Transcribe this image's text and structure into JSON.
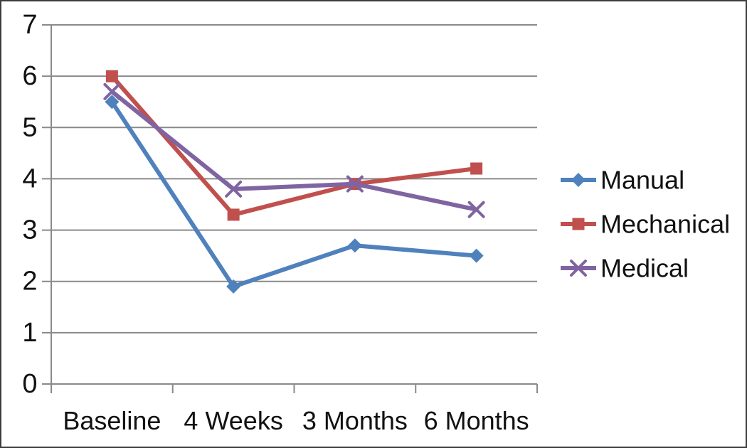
{
  "chart_data": {
    "type": "line",
    "categories": [
      "Baseline",
      "4 Weeks",
      "3 Months",
      "6 Months"
    ],
    "series": [
      {
        "name": "Manual",
        "values": [
          5.5,
          1.9,
          2.7,
          2.5
        ],
        "color": "#4F81BD",
        "marker": "diamond"
      },
      {
        "name": "Mechanical",
        "values": [
          6.0,
          3.3,
          3.9,
          4.2
        ],
        "color": "#C0504D",
        "marker": "square"
      },
      {
        "name": "Medical",
        "values": [
          5.7,
          3.8,
          3.9,
          3.4
        ],
        "color": "#8064A2",
        "marker": "x"
      }
    ],
    "title": "",
    "xlabel": "",
    "ylabel": "",
    "ylim": [
      0,
      7
    ],
    "y_ticks": [
      0,
      1,
      2,
      3,
      4,
      5,
      6,
      7
    ],
    "grid": true,
    "legend_position": "right"
  },
  "styles": {
    "grid_color": "#8a8a8a",
    "axis_color": "#8a8a8a",
    "text_color": "#111111",
    "background": "#ffffff",
    "border_color": "#3c3c3c"
  }
}
